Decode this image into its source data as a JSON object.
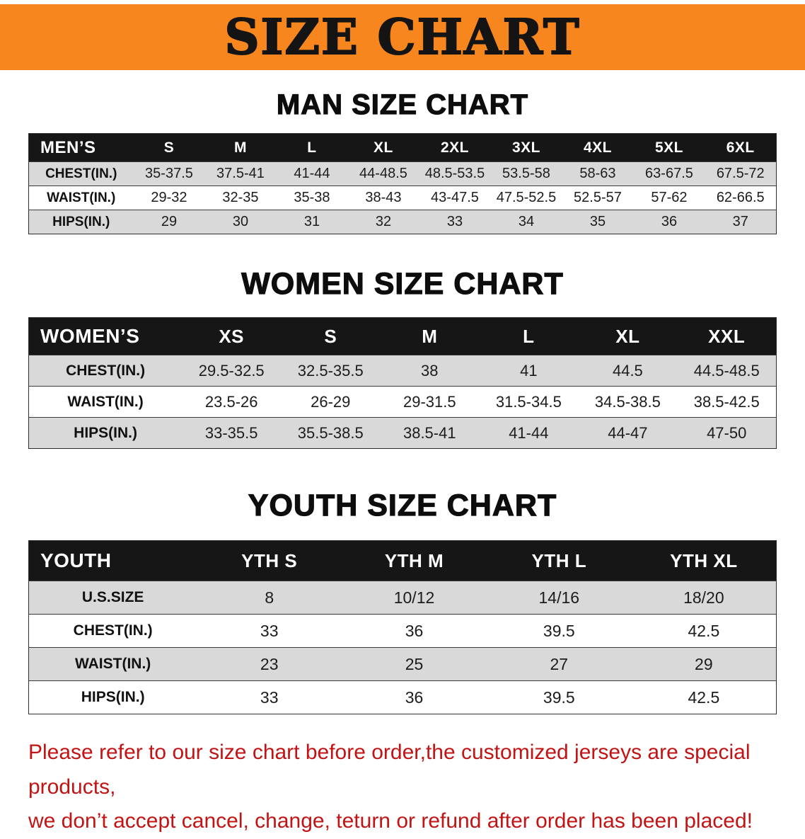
{
  "banner": {
    "title": "SIZE CHART",
    "bg_color": "#f6861d",
    "text_color": "#141414"
  },
  "sections": [
    {
      "heading": "MAN SIZE CHART"
    },
    {
      "heading": "WOMEN SIZE CHART"
    },
    {
      "heading": "YOUTH SIZE CHART"
    }
  ],
  "chart_data": [
    {
      "type": "table",
      "title": "MAN SIZE CHART",
      "columns": [
        "MEN’S",
        "S",
        "M",
        "L",
        "XL",
        "2XL",
        "3XL",
        "4XL",
        "5XL",
        "6XL"
      ],
      "rows": [
        [
          "CHEST(IN.)",
          "35-37.5",
          "37.5-41",
          "41-44",
          "44-48.5",
          "48.5-53.5",
          "53.5-58",
          "58-63",
          "63-67.5",
          "67.5-72"
        ],
        [
          "WAIST(IN.)",
          "29-32",
          "32-35",
          "35-38",
          "38-43",
          "43-47.5",
          "47.5-52.5",
          "52.5-57",
          "57-62",
          "62-66.5"
        ],
        [
          "HIPS(IN.)",
          "29",
          "30",
          "31",
          "32",
          "33",
          "34",
          "35",
          "36",
          "37"
        ]
      ]
    },
    {
      "type": "table",
      "title": "WOMEN SIZE CHART",
      "columns": [
        "WOMEN’S",
        "XS",
        "S",
        "M",
        "L",
        "XL",
        "XXL"
      ],
      "rows": [
        [
          "CHEST(IN.)",
          "29.5-32.5",
          "32.5-35.5",
          "38",
          "41",
          "44.5",
          "44.5-48.5"
        ],
        [
          "WAIST(IN.)",
          "23.5-26",
          "26-29",
          "29-31.5",
          "31.5-34.5",
          "34.5-38.5",
          "38.5-42.5"
        ],
        [
          "HIPS(IN.)",
          "33-35.5",
          "35.5-38.5",
          "38.5-41",
          "41-44",
          "44-47",
          "47-50"
        ]
      ]
    },
    {
      "type": "table",
      "title": "YOUTH SIZE CHART",
      "columns": [
        "YOUTH",
        "YTH S",
        "YTH M",
        "YTH L",
        "YTH XL"
      ],
      "rows": [
        [
          "U.S.SIZE",
          "8",
          "10/12",
          "14/16",
          "18/20"
        ],
        [
          "CHEST(IN.)",
          "33",
          "36",
          "39.5",
          "42.5"
        ],
        [
          "WAIST(IN.)",
          "23",
          "25",
          "27",
          "29"
        ],
        [
          "HIPS(IN.)",
          "33",
          "36",
          "39.5",
          "42.5"
        ]
      ]
    }
  ],
  "footer": {
    "line1": "Please refer to our size chart before order,the customized jerseys are special products,",
    "line2": "we don’t accept cancel, change, teturn or refund after order has been placed!",
    "text_color": "#c21414"
  }
}
